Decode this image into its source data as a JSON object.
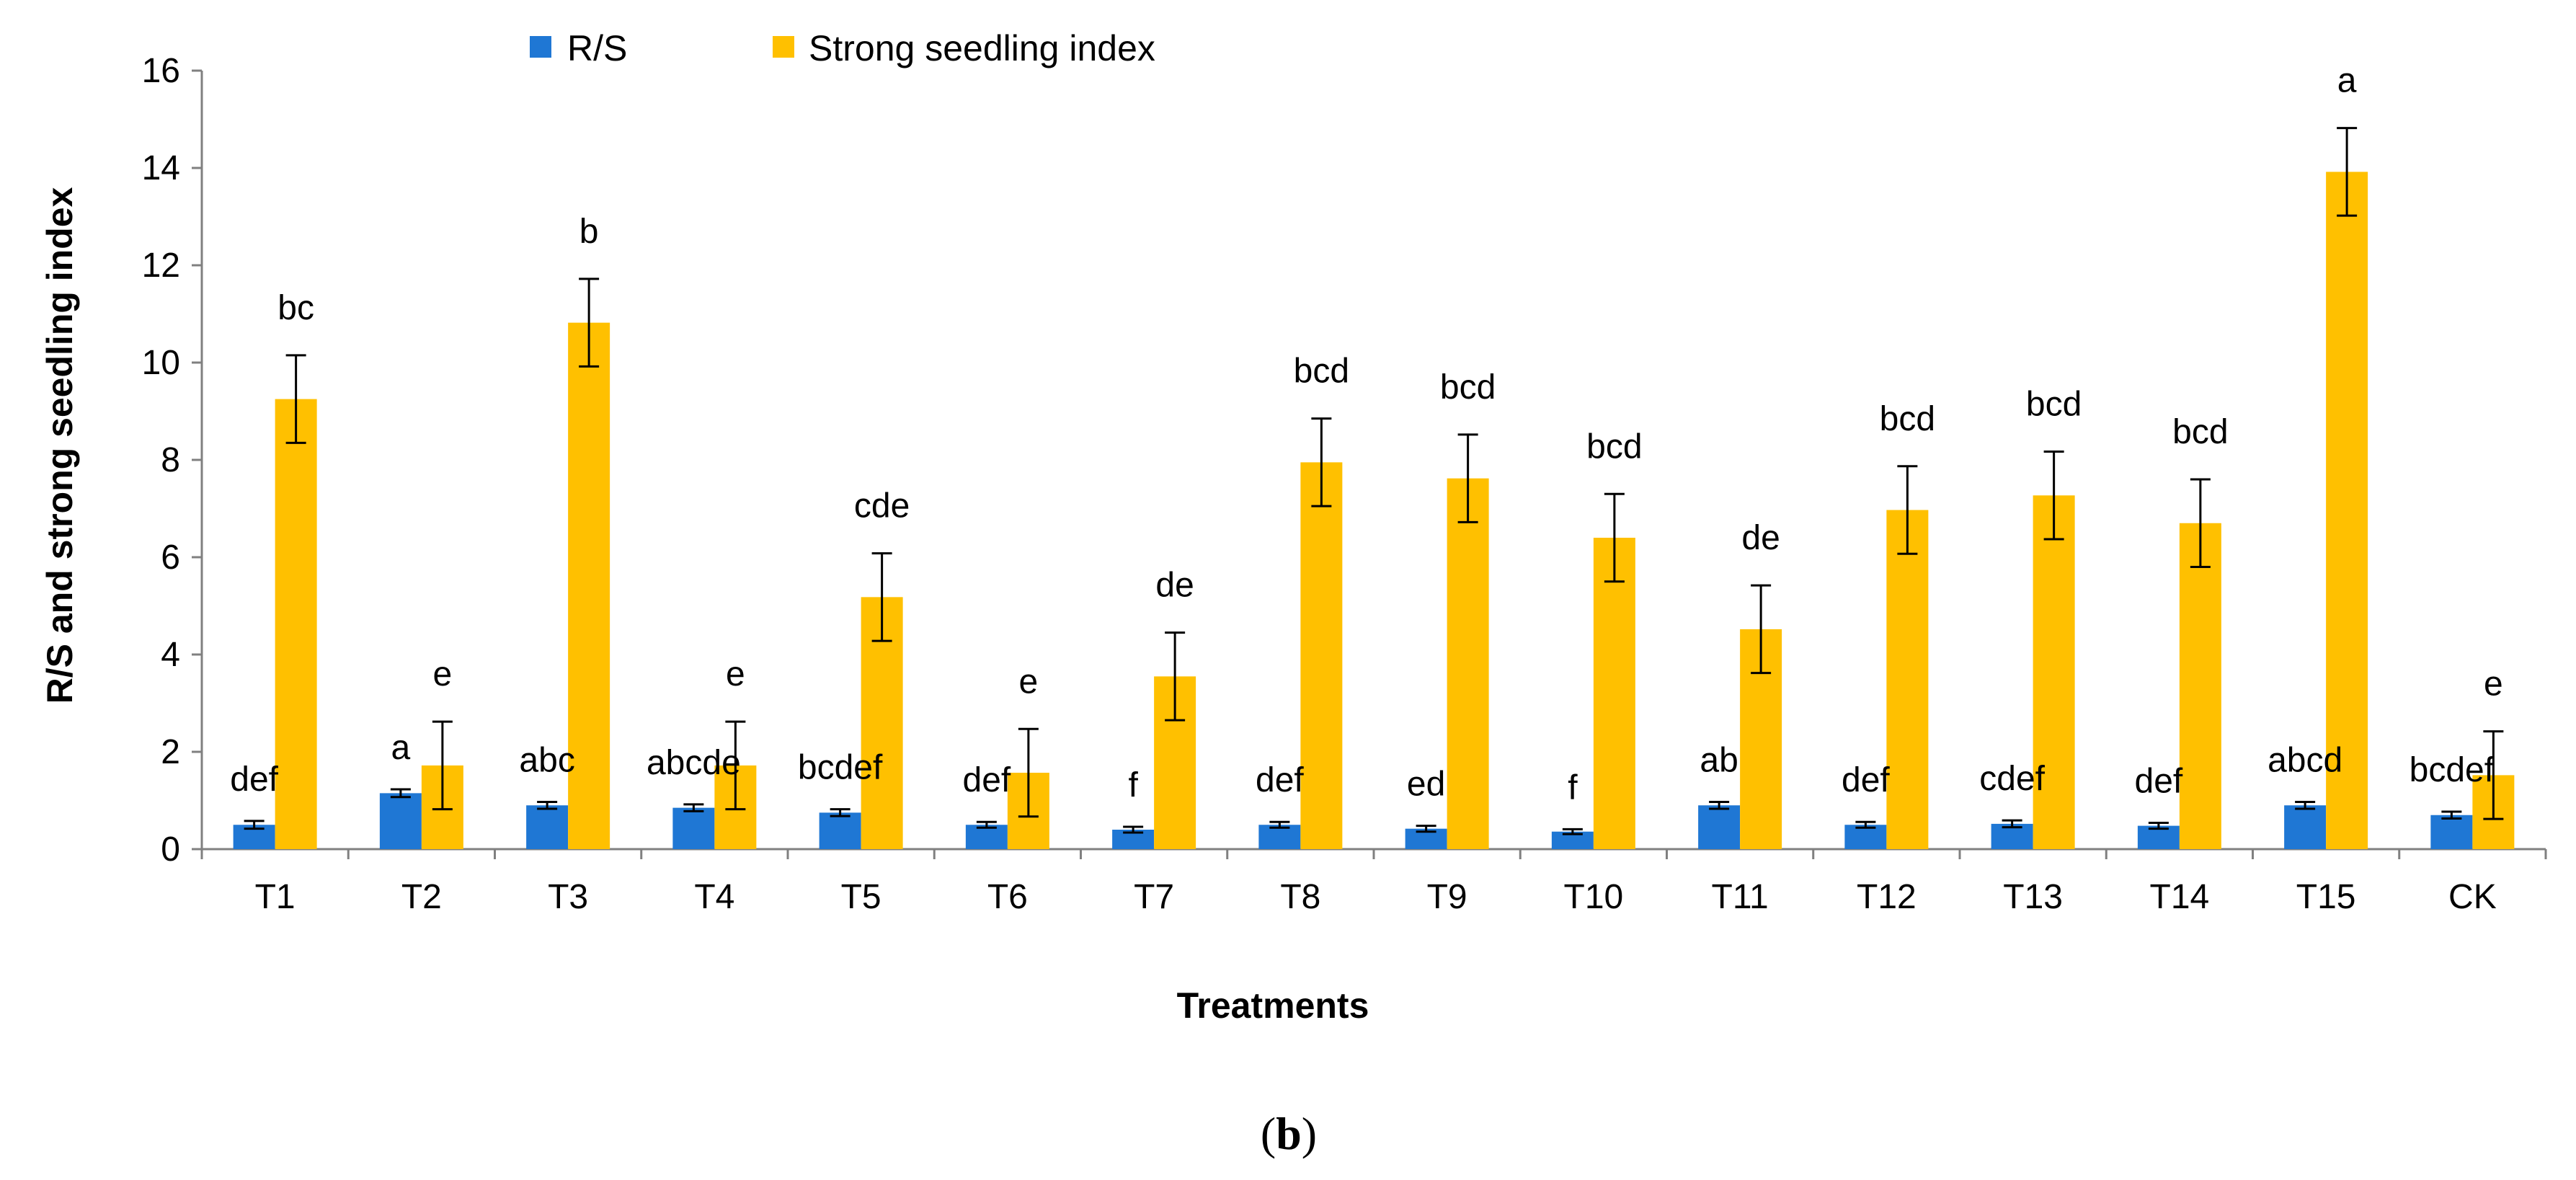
{
  "chart_data": {
    "type": "bar",
    "xlabel": "Treatments",
    "ylabel": "R/S and strong seedling index",
    "ylim": [
      0,
      16
    ],
    "yticks": [
      0,
      2,
      4,
      6,
      8,
      10,
      12,
      14,
      16
    ],
    "grid": false,
    "legend_position": "top-center",
    "categories": [
      "T1",
      "T2",
      "T3",
      "T4",
      "T5",
      "T6",
      "T7",
      "T8",
      "T9",
      "T10",
      "T11",
      "T12",
      "T13",
      "T14",
      "T15",
      "CK"
    ],
    "series": [
      {
        "name": "R/S",
        "color": "#1F77D4",
        "values": [
          0.5,
          1.15,
          0.9,
          0.85,
          0.75,
          0.5,
          0.4,
          0.5,
          0.42,
          0.36,
          0.9,
          0.5,
          0.52,
          0.48,
          0.9,
          0.7
        ],
        "errors": [
          0.08,
          0.08,
          0.07,
          0.07,
          0.07,
          0.06,
          0.06,
          0.06,
          0.06,
          0.05,
          0.07,
          0.06,
          0.07,
          0.06,
          0.07,
          0.07
        ],
        "labels": [
          "def",
          "a",
          "abc",
          "abcde",
          "bcdef",
          "def",
          "f",
          "def",
          "ed",
          "f",
          "ab",
          "def",
          "cdef",
          "def",
          "abcd",
          "bcdef"
        ]
      },
      {
        "name": "Strong seedling index",
        "color": "#FFC000",
        "values": [
          9.25,
          1.72,
          10.82,
          1.72,
          5.18,
          1.57,
          3.55,
          7.95,
          7.62,
          6.4,
          4.52,
          6.97,
          7.27,
          6.7,
          13.92,
          1.52
        ],
        "errors": [
          0.9,
          0.9,
          0.9,
          0.9,
          0.9,
          0.9,
          0.9,
          0.9,
          0.9,
          0.9,
          0.9,
          0.9,
          0.9,
          0.9,
          0.9,
          0.9
        ],
        "labels": [
          "bc",
          "e",
          "b",
          "e",
          "cde",
          "e",
          "de",
          "bcd",
          "bcd",
          "bcd",
          "de",
          "bcd",
          "bcd",
          "bcd",
          "a",
          "e"
        ]
      }
    ]
  },
  "panel_label": "b"
}
